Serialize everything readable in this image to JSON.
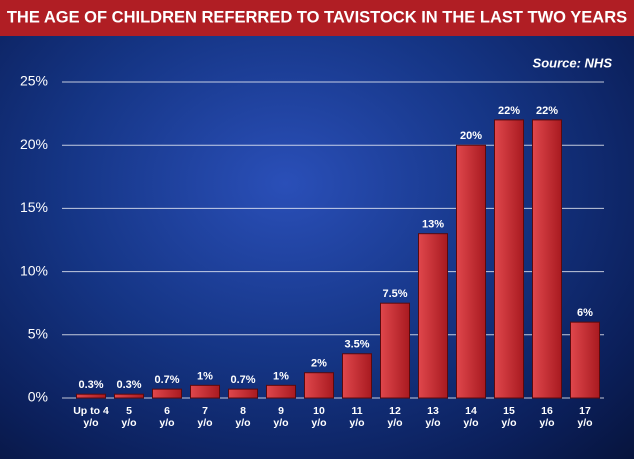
{
  "chart_data": {
    "type": "bar",
    "title": "THE AGE OF CHILDREN REFERRED TO TAVISTOCK IN THE LAST TWO YEARS",
    "source": "Source: NHS",
    "categories": [
      "Up to 4\ny/o",
      "5\ny/o",
      "6\ny/o",
      "7\ny/o",
      "8\ny/o",
      "9\ny/o",
      "10\ny/o",
      "11\ny/o",
      "12\ny/o",
      "13\ny/o",
      "14\ny/o",
      "15\ny/o",
      "16\ny/o",
      "17\ny/o"
    ],
    "values": [
      0.3,
      0.3,
      0.7,
      1,
      0.7,
      1,
      2,
      3.5,
      7.5,
      13,
      20,
      22,
      22,
      6
    ],
    "value_labels": [
      "0.3%",
      "0.3%",
      "0.7%",
      "1%",
      "0.7%",
      "1%",
      "2%",
      "3.5%",
      "7.5%",
      "13%",
      "20%",
      "22%",
      "22%",
      "6%"
    ],
    "color": "#c8282e",
    "ylim": [
      0,
      25
    ],
    "yticks": [
      {
        "value": 0,
        "label": "0%"
      },
      {
        "value": 5,
        "label": "5%"
      },
      {
        "value": 10,
        "label": "10%"
      },
      {
        "value": 15,
        "label": "15%"
      },
      {
        "value": 20,
        "label": "20%"
      },
      {
        "value": 25,
        "label": "25%"
      }
    ],
    "grid": true
  }
}
